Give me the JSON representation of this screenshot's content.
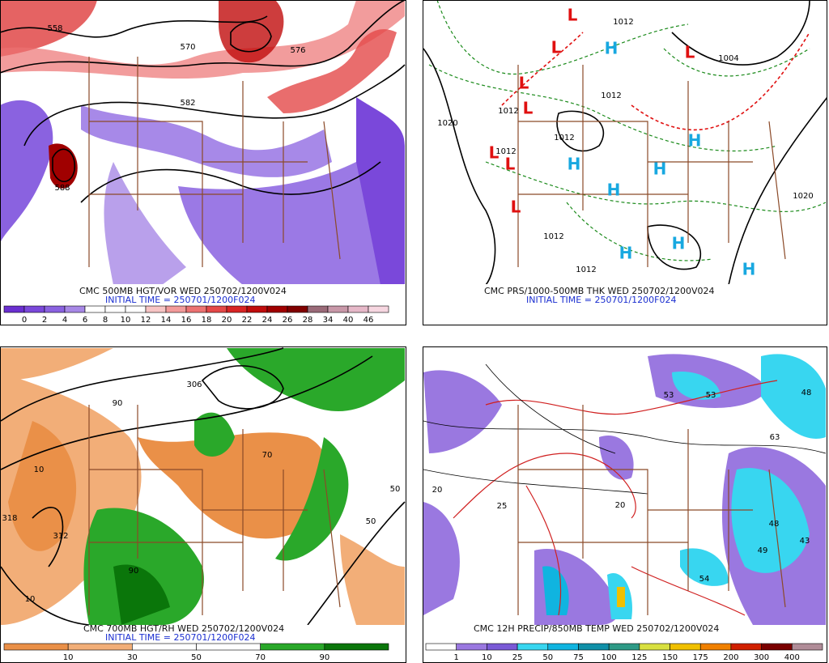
{
  "panels": [
    {
      "caption": "CMC 500MB HGT/VOR WED 250702/1200V024",
      "initial_time": "INITIAL TIME = 250701/1200F024",
      "contour_labels": [
        558,
        570,
        582,
        588,
        576
      ],
      "colorbar": {
        "labels": [
          0,
          2,
          4,
          6,
          8,
          10,
          12,
          14,
          16,
          18,
          20,
          22,
          24,
          26,
          28,
          34,
          40,
          46
        ],
        "colors": [
          "#6a2fd0",
          "#7a48da",
          "#8a62e0",
          "#a788e6",
          "#ffffff",
          "#ffffff",
          "#ffffff",
          "#f7c4c4",
          "#f29a9a",
          "#ec7272",
          "#e44848",
          "#d82424",
          "#c00c0c",
          "#a00000",
          "#800000",
          "#9a6a78",
          "#c898a8",
          "#e6b8c8",
          "#f6d6e0"
        ]
      }
    },
    {
      "caption": "CMC PRS/1000-500MB THK WED 250702/1200V024",
      "initial_time": "INITIAL TIME = 250701/1200F024",
      "contour_labels": [
        1012,
        1004,
        1012,
        1012,
        1020,
        1012,
        1012,
        1020,
        1012,
        1012
      ],
      "centers": [
        "L",
        "L",
        "L",
        "L",
        "L",
        "L",
        "L",
        "L",
        "H",
        "H",
        "H",
        "H",
        "H",
        "H",
        "H",
        "H"
      ]
    },
    {
      "caption": "CMC 700MB HGT/RH WED 250702/1200V024",
      "initial_time": "INITIAL TIME = 250701/1200F024",
      "contour_labels": [
        306,
        318,
        312,
        90,
        50,
        10,
        90,
        50,
        70,
        10
      ],
      "colorbar": {
        "labels": [
          10,
          30,
          50,
          70,
          90
        ],
        "colors": [
          "#ea9048",
          "#f2ae78",
          "#ffffff",
          "#ffffff",
          "#2aa82a",
          "#0a760a"
        ]
      }
    },
    {
      "caption": "CMC 12H PRECIP/850MB TEMP WED 250702/1200V024",
      "contour_labels": [
        48,
        53,
        53,
        63,
        48,
        43,
        49,
        54,
        20,
        20,
        25
      ],
      "colorbar": {
        "labels": [
          1,
          10,
          25,
          50,
          75,
          100,
          125,
          150,
          175,
          200,
          300,
          400
        ],
        "colors": [
          "#ffffff",
          "#9a78e0",
          "#7a5ad6",
          "#38d6f0",
          "#10b4e0",
          "#1090a8",
          "#2e9a86",
          "#d8e040",
          "#f0c000",
          "#f08000",
          "#d02000",
          "#7a0000",
          "#b08c98"
        ]
      }
    }
  ]
}
